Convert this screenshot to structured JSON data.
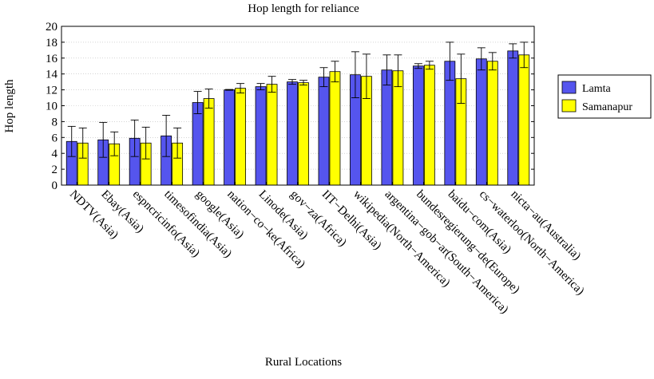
{
  "chart_data": {
    "type": "bar",
    "title": "Hop length for reliance",
    "xlabel": "Rural Locations",
    "ylabel": "Hop length",
    "ylim": [
      0,
      20
    ],
    "yticks": [
      "0",
      "2",
      "4",
      "6",
      "8",
      "10",
      "12",
      "14",
      "16",
      "18",
      "20"
    ],
    "legend_position": "right",
    "error_bars": true,
    "categories": [
      "NDTV(Asia)",
      "Ebay(Asia)",
      "espncricinfo(Asia)",
      "timesofindia(Asia)",
      "google(Asia)",
      "nation−co−ke(Africa)",
      "Linode(Asia)",
      "gov−za(Africa)",
      "IIT−Delhi(Asia)",
      "wikipedia(North−America)",
      "argentina−gob−ar(South−America)",
      "bundesregierung−de(Europe)",
      "baidu−com(Asia)",
      "cs−waterloo(North−America)",
      "nicta−au(Australia)"
    ],
    "series": [
      {
        "name": "Lamta",
        "color": "#5555ee",
        "values": [
          5.5,
          5.7,
          5.9,
          6.2,
          10.4,
          12.0,
          12.4,
          13.0,
          13.6,
          13.9,
          14.5,
          15.0,
          15.6,
          15.9,
          16.9
        ],
        "errors": [
          1.9,
          2.2,
          2.3,
          2.6,
          1.4,
          0.05,
          0.4,
          0.3,
          1.2,
          2.9,
          1.9,
          0.3,
          2.4,
          1.4,
          0.9
        ]
      },
      {
        "name": "Samanapur",
        "color": "#ffff00",
        "values": [
          5.3,
          5.2,
          5.3,
          5.3,
          10.9,
          12.2,
          12.7,
          12.9,
          14.3,
          13.7,
          14.4,
          15.1,
          13.4,
          15.6,
          16.4
        ],
        "errors": [
          1.9,
          1.5,
          2.0,
          1.9,
          1.2,
          0.6,
          1.0,
          0.3,
          1.3,
          2.8,
          2.0,
          0.5,
          3.1,
          1.1,
          1.6
        ]
      }
    ]
  }
}
